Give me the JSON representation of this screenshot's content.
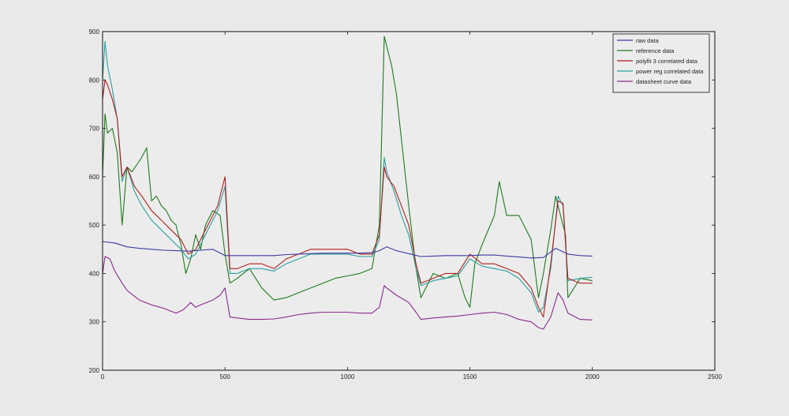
{
  "chart_data": {
    "type": "line",
    "title": "",
    "xlabel": "",
    "ylabel": "",
    "xlim": [
      0,
      2500
    ],
    "ylim": [
      200,
      900
    ],
    "xticks": [
      0,
      500,
      1000,
      1500,
      2000,
      2500
    ],
    "yticks": [
      200,
      300,
      400,
      500,
      600,
      700,
      800,
      900
    ],
    "grid": false,
    "legend_position": "top-right",
    "series": [
      {
        "name": "raw data",
        "color": "#3a3aa0",
        "x": [
          0,
          50,
          100,
          150,
          200,
          250,
          300,
          350,
          400,
          450,
          500,
          550,
          600,
          650,
          700,
          750,
          800,
          850,
          900,
          950,
          1000,
          1050,
          1100,
          1130,
          1160,
          1200,
          1250,
          1300,
          1350,
          1400,
          1450,
          1500,
          1550,
          1600,
          1650,
          1700,
          1750,
          1800,
          1850,
          1900,
          1950,
          2000
        ],
        "y": [
          466,
          463,
          455,
          452,
          450,
          448,
          447,
          446,
          448,
          450,
          437,
          437,
          437,
          437,
          437,
          439,
          440,
          441,
          442,
          442,
          442,
          442,
          443,
          447,
          455,
          447,
          441,
          435,
          436,
          437,
          437,
          437,
          438,
          438,
          436,
          434,
          432,
          433,
          452,
          440,
          437,
          436
        ]
      },
      {
        "name": "reference data",
        "color": "#1f7a1f",
        "x": [
          0,
          10,
          20,
          40,
          60,
          80,
          100,
          120,
          140,
          160,
          180,
          200,
          220,
          240,
          260,
          280,
          300,
          320,
          340,
          360,
          380,
          400,
          420,
          450,
          480,
          500,
          520,
          550,
          600,
          650,
          700,
          750,
          800,
          850,
          900,
          950,
          1000,
          1050,
          1100,
          1130,
          1150,
          1160,
          1180,
          1200,
          1250,
          1280,
          1300,
          1350,
          1400,
          1450,
          1480,
          1500,
          1520,
          1550,
          1600,
          1620,
          1650,
          1700,
          1750,
          1780,
          1800,
          1830,
          1850,
          1870,
          1890,
          1900,
          1950,
          2000
        ],
        "y": [
          600,
          730,
          690,
          700,
          650,
          500,
          620,
          610,
          625,
          640,
          660,
          550,
          560,
          540,
          530,
          510,
          500,
          460,
          400,
          430,
          480,
          450,
          500,
          530,
          520,
          440,
          380,
          390,
          410,
          370,
          345,
          350,
          360,
          370,
          380,
          390,
          395,
          400,
          410,
          500,
          890,
          870,
          830,
          770,
          540,
          410,
          350,
          400,
          390,
          400,
          350,
          330,
          420,
          460,
          520,
          590,
          520,
          520,
          470,
          350,
          400,
          490,
          560,
          520,
          480,
          350,
          390,
          385
        ]
      },
      {
        "name": "polyfit 3 correlated data",
        "color": "#b01e1e",
        "x": [
          0,
          10,
          20,
          40,
          60,
          80,
          100,
          130,
          160,
          200,
          240,
          280,
          320,
          350,
          380,
          410,
          440,
          470,
          500,
          520,
          550,
          600,
          650,
          700,
          750,
          800,
          850,
          900,
          950,
          1000,
          1050,
          1100,
          1130,
          1150,
          1160,
          1190,
          1220,
          1250,
          1280,
          1300,
          1350,
          1400,
          1450,
          1500,
          1550,
          1600,
          1650,
          1700,
          1750,
          1780,
          1800,
          1830,
          1860,
          1880,
          1900,
          1950,
          2000
        ],
        "y": [
          760,
          800,
          790,
          760,
          720,
          600,
          620,
          580,
          560,
          530,
          510,
          490,
          470,
          440,
          450,
          480,
          510,
          540,
          600,
          410,
          410,
          420,
          420,
          410,
          430,
          440,
          450,
          450,
          450,
          450,
          440,
          440,
          480,
          620,
          600,
          580,
          540,
          500,
          420,
          380,
          390,
          400,
          400,
          440,
          420,
          420,
          410,
          400,
          370,
          330,
          310,
          420,
          550,
          545,
          390,
          380,
          380
        ]
      },
      {
        "name": "power reg correlated data",
        "color": "#2aa0a0",
        "x": [
          0,
          10,
          20,
          40,
          60,
          80,
          100,
          130,
          160,
          200,
          240,
          280,
          320,
          350,
          380,
          410,
          440,
          470,
          500,
          520,
          550,
          600,
          650,
          700,
          750,
          800,
          850,
          900,
          950,
          1000,
          1050,
          1100,
          1130,
          1150,
          1160,
          1190,
          1220,
          1250,
          1280,
          1300,
          1350,
          1400,
          1450,
          1500,
          1550,
          1600,
          1650,
          1700,
          1750,
          1780,
          1800,
          1830,
          1860,
          1880,
          1900,
          1950,
          2000
        ],
        "y": [
          800,
          880,
          830,
          780,
          720,
          590,
          620,
          570,
          540,
          510,
          490,
          470,
          450,
          430,
          440,
          470,
          500,
          530,
          580,
          400,
          400,
          410,
          410,
          405,
          420,
          430,
          440,
          440,
          440,
          440,
          435,
          435,
          470,
          640,
          610,
          570,
          520,
          480,
          410,
          375,
          385,
          390,
          395,
          430,
          415,
          410,
          405,
          390,
          360,
          320,
          330,
          410,
          560,
          540,
          385,
          390,
          392
        ]
      },
      {
        "name": "datasheet curve data",
        "color": "#8a2a8a",
        "x": [
          0,
          10,
          30,
          50,
          80,
          100,
          150,
          200,
          250,
          300,
          330,
          350,
          360,
          380,
          400,
          450,
          480,
          500,
          520,
          550,
          600,
          650,
          700,
          750,
          800,
          850,
          900,
          950,
          1000,
          1050,
          1100,
          1130,
          1150,
          1160,
          1200,
          1250,
          1280,
          1300,
          1350,
          1400,
          1450,
          1500,
          1550,
          1600,
          1650,
          1700,
          1750,
          1780,
          1800,
          1830,
          1860,
          1880,
          1900,
          1950,
          2000
        ],
        "y": [
          400,
          435,
          430,
          405,
          380,
          365,
          345,
          335,
          328,
          318,
          325,
          335,
          340,
          330,
          335,
          345,
          355,
          370,
          310,
          308,
          305,
          305,
          306,
          310,
          315,
          318,
          320,
          320,
          320,
          318,
          318,
          330,
          375,
          370,
          355,
          340,
          320,
          305,
          308,
          310,
          312,
          315,
          318,
          320,
          315,
          305,
          300,
          288,
          285,
          310,
          360,
          345,
          318,
          305,
          304
        ]
      }
    ]
  }
}
